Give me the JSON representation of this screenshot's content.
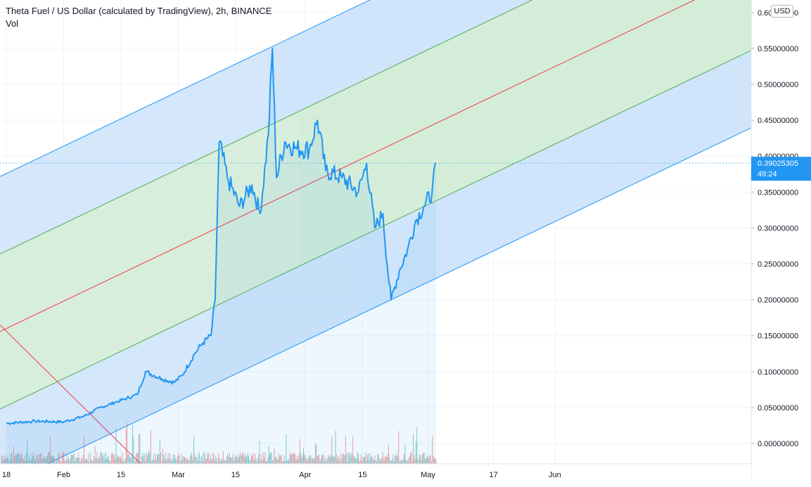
{
  "header": {
    "title": "Theta Fuel / US Dollar (calculated by TradingView), 2h, BINANCE",
    "volume_label": "Vol",
    "currency": "USD"
  },
  "last_price": {
    "value": "0.39025305",
    "countdown": "49:24"
  },
  "colors": {
    "price_line": "#2196f3",
    "median_line": "#f23645",
    "inner_lines": "#4caf50",
    "outer_lines": "#2196f3",
    "inner_fill": "#d4ecd8",
    "outer_fill": "#cfe4fb",
    "volume_up": "#26a69a",
    "volume_down": "#ef5350"
  },
  "chart_data": {
    "type": "line",
    "symbol": "TFUEL/USD",
    "interval": "2h",
    "y_axis": {
      "ticks": [
        "0.00000000",
        "0.05000000",
        "0.10000000",
        "0.15000000",
        "0.20000000",
        "0.25000000",
        "0.30000000",
        "0.35000000",
        "0.40000000",
        "0.45000000",
        "0.50000000",
        "0.55000000",
        "0.60000000"
      ]
    },
    "x_axis": {
      "ticks": [
        "18",
        "Feb",
        "15",
        "Mar",
        "15",
        "Apr",
        "15",
        "May",
        "17",
        "Jun"
      ]
    },
    "series": [
      {
        "x": [
          "2021-01-18",
          "2021-01-25",
          "2021-02-01",
          "2021-02-06",
          "2021-02-10",
          "2021-02-14",
          "2021-02-19",
          "2021-02-21",
          "2021-02-25",
          "2021-02-28",
          "2021-03-02",
          "2021-03-05",
          "2021-03-07",
          "2021-03-09",
          "2021-03-10",
          "2021-03-11",
          "2021-03-13",
          "2021-03-16",
          "2021-03-19",
          "2021-03-21",
          "2021-03-23",
          "2021-03-24",
          "2021-03-25",
          "2021-03-27",
          "2021-03-30",
          "2021-04-02",
          "2021-04-04",
          "2021-04-06",
          "2021-04-10",
          "2021-04-14",
          "2021-04-16",
          "2021-04-18",
          "2021-04-20",
          "2021-04-21",
          "2021-04-22",
          "2021-04-24",
          "2021-04-26",
          "2021-04-28",
          "2021-04-30",
          "2021-05-02",
          "2021-05-03"
        ],
        "y": [
          0.028,
          0.031,
          0.03,
          0.038,
          0.05,
          0.058,
          0.068,
          0.1,
          0.09,
          0.085,
          0.095,
          0.125,
          0.14,
          0.15,
          0.2,
          0.42,
          0.37,
          0.33,
          0.36,
          0.32,
          0.43,
          0.55,
          0.37,
          0.42,
          0.41,
          0.41,
          0.45,
          0.38,
          0.37,
          0.35,
          0.39,
          0.3,
          0.32,
          0.25,
          0.2,
          0.24,
          0.27,
          0.31,
          0.33,
          0.35,
          0.39
        ]
      }
    ],
    "pitchfork_drawing": {
      "type": "pitchfork",
      "pivot": {
        "x": "2021-01-18",
        "y": 0.16
      },
      "reaction_high": {
        "x": "2021-03-23",
        "y": 0.55
      },
      "reaction_low": {
        "x": "2021-04-22",
        "y": 0.2
      }
    },
    "grid": true,
    "log_scale": false
  }
}
